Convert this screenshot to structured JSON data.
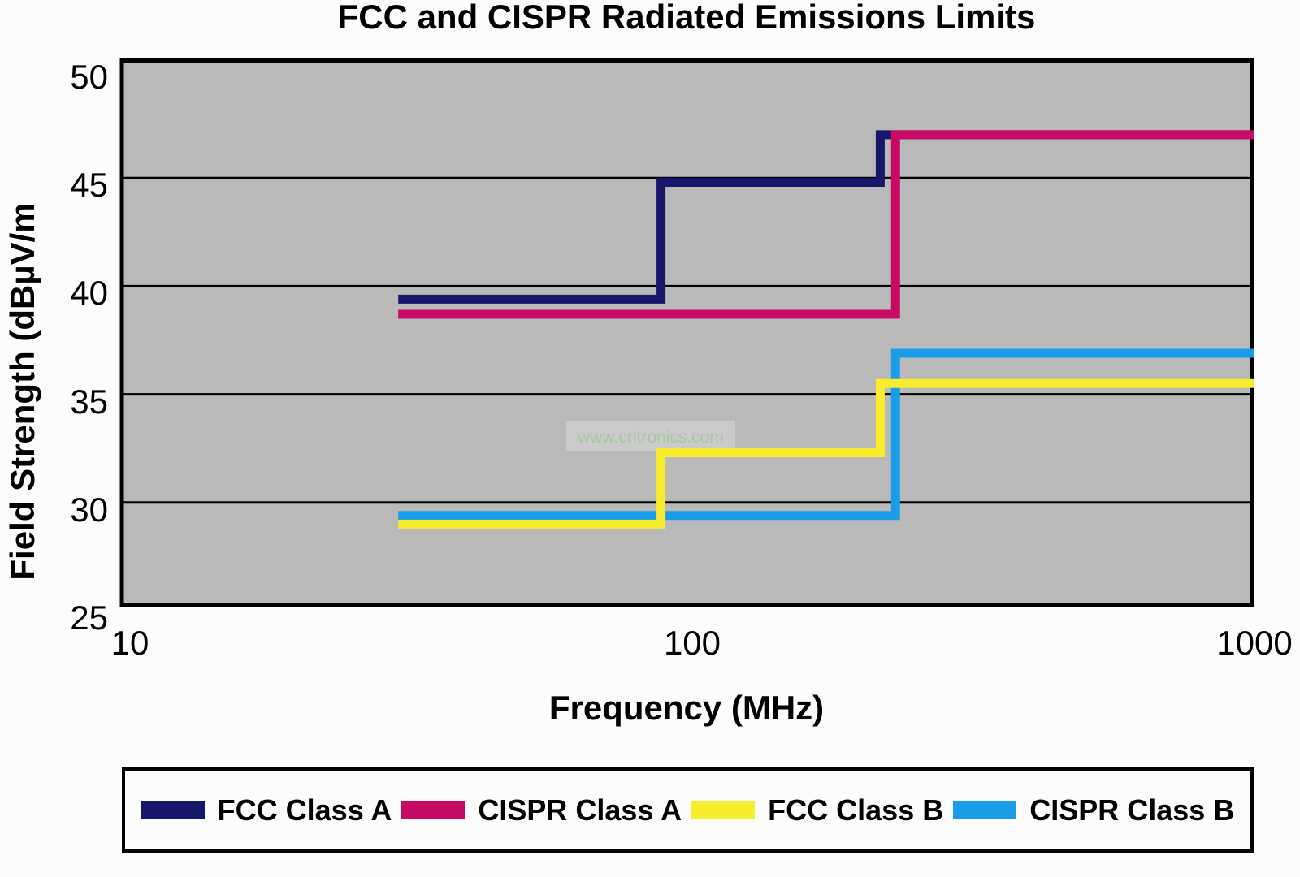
{
  "title": "FCC and CISPR Radiated Emissions Limits",
  "watermark": "www.cntronics.com",
  "chart_data": {
    "type": "line",
    "subtype": "step",
    "title": "FCC and CISPR Radiated Emissions Limits",
    "xlabel": "Frequency (MHz)",
    "ylabel": "Field Strength (dBµV/m",
    "x_scale": "log",
    "xlim": [
      10,
      1000
    ],
    "ylim": [
      25,
      50
    ],
    "x_ticks": [
      10,
      100,
      1000
    ],
    "y_ticks": [
      50,
      45,
      40,
      35,
      30,
      25
    ],
    "grid": "horizontal",
    "grid_color": "#000000",
    "plot_bg": "#b9b9b9",
    "legend_position": "bottom",
    "series": [
      {
        "name": "FCC Class A",
        "color": "#16166b",
        "points": [
          [
            30,
            39.4
          ],
          [
            88,
            39.4
          ],
          [
            88,
            44.8
          ],
          [
            216,
            44.8
          ],
          [
            216,
            47
          ],
          [
            1000,
            47
          ]
        ]
      },
      {
        "name": "CISPR Class A",
        "color": "#c60a66",
        "points": [
          [
            30,
            38.7
          ],
          [
            230,
            38.7
          ],
          [
            230,
            47
          ],
          [
            1000,
            47
          ]
        ]
      },
      {
        "name": "CISPR Class B",
        "color": "#1a9de9",
        "points": [
          [
            30,
            29.4
          ],
          [
            230,
            29.4
          ],
          [
            230,
            36.9
          ],
          [
            1000,
            36.9
          ]
        ]
      },
      {
        "name": "FCC Class B",
        "color": "#f7ec2e",
        "points": [
          [
            30,
            29.0
          ],
          [
            88,
            29.0
          ],
          [
            88,
            32.3
          ],
          [
            216,
            32.3
          ],
          [
            216,
            35.5
          ],
          [
            1000,
            35.5
          ]
        ]
      }
    ],
    "legend_order": [
      "FCC Class A",
      "CISPR Class A",
      "FCC Class B",
      "CISPR Class B"
    ]
  }
}
